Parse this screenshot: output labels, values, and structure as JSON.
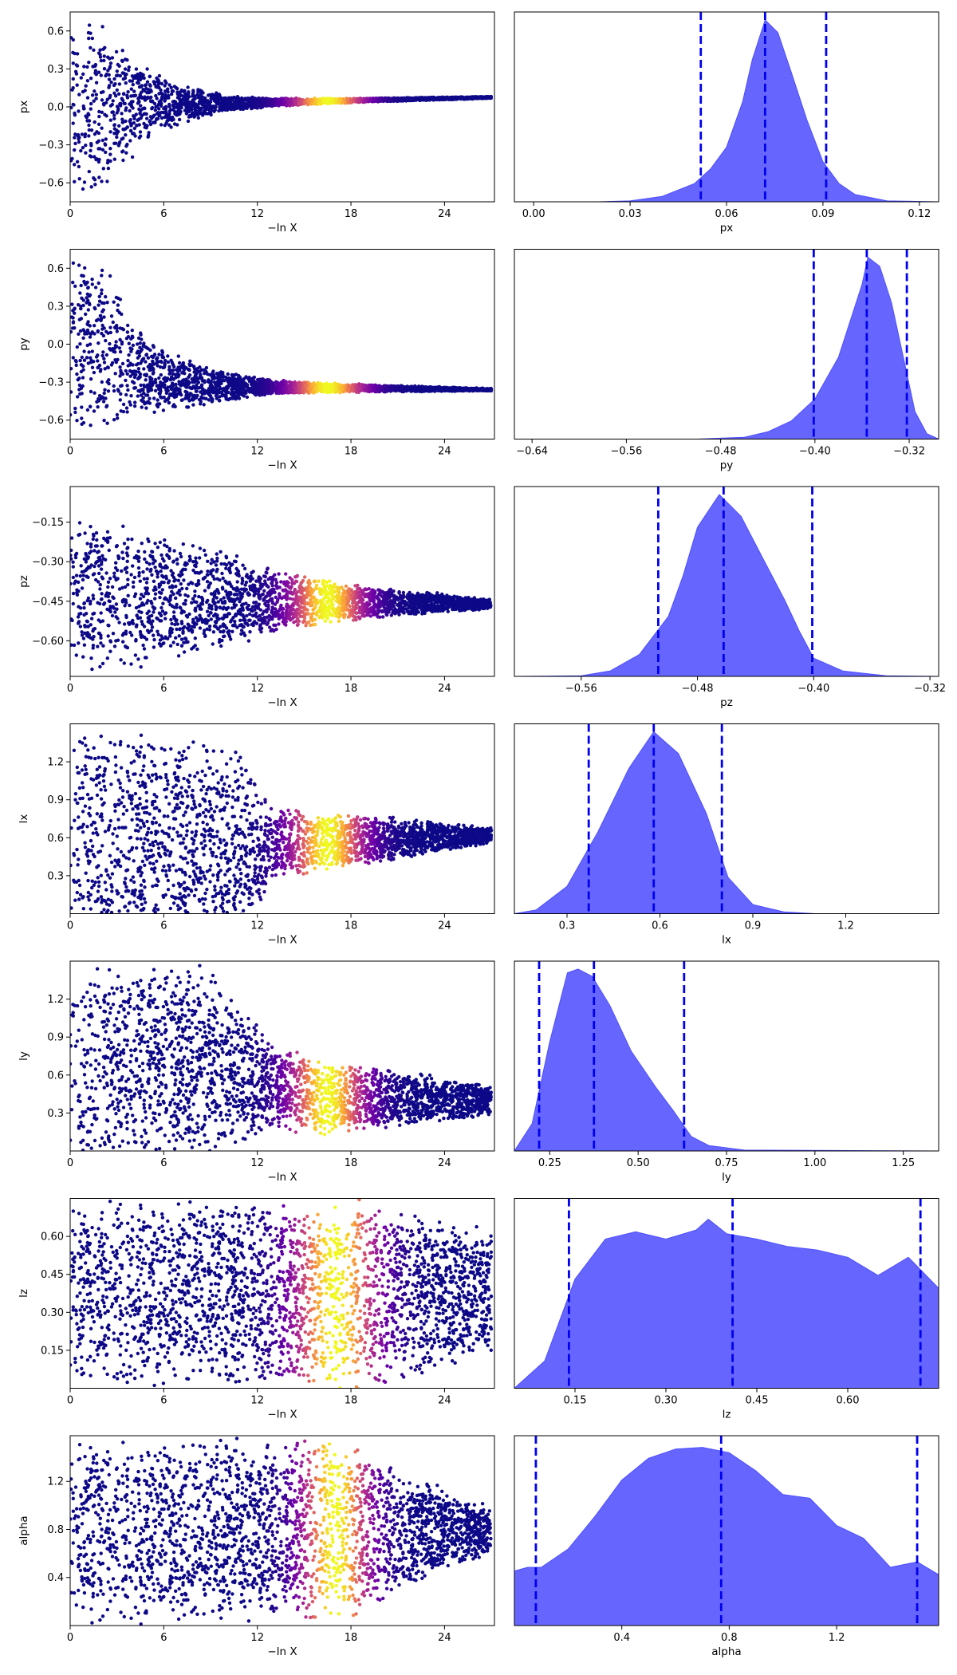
{
  "colors": {
    "kde_fill": "#6666ff",
    "kde_line": "#4d4dff",
    "quantile_line": "#0000ee",
    "axes": "#000000",
    "colormap": "plasma"
  },
  "trace_xlabel": "−ln X",
  "chart_data": [
    {
      "param": "px",
      "trace_ylabel": "px",
      "ylim": [
        -0.75,
        0.75
      ],
      "yticks": [
        -0.6,
        -0.3,
        0.0,
        0.3,
        0.6
      ],
      "ytick_labels": [
        "−0.6",
        "−0.3",
        "0.0",
        "0.3",
        "0.6"
      ],
      "xticks": [
        0,
        6,
        12,
        18,
        24
      ],
      "xlim": [
        0,
        27.2
      ],
      "trace_center": [
        [
          0,
          0.0
        ],
        [
          27,
          0.075
        ]
      ],
      "trace_halfwidth": [
        [
          0,
          0.75
        ],
        [
          2,
          0.75
        ],
        [
          3,
          0.55
        ],
        [
          5,
          0.3
        ],
        [
          7,
          0.16
        ],
        [
          10,
          0.07
        ],
        [
          13,
          0.035
        ],
        [
          18,
          0.018
        ],
        [
          27,
          0.008
        ]
      ],
      "trace_peak": 16.5,
      "trace_band": 2.5,
      "posterior": {
        "type": "area",
        "xlim": [
          -0.006,
          0.126
        ],
        "xticks": [
          0.0,
          0.03,
          0.06,
          0.09,
          0.12
        ],
        "xtick_labels": [
          "0.00",
          "0.03",
          "0.06",
          "0.09",
          "0.12"
        ],
        "xlabel": "px",
        "curve": [
          [
            -0.006,
            0
          ],
          [
            0.02,
            0
          ],
          [
            0.03,
            0.005
          ],
          [
            0.04,
            0.03
          ],
          [
            0.05,
            0.1
          ],
          [
            0.055,
            0.18
          ],
          [
            0.06,
            0.3
          ],
          [
            0.065,
            0.55
          ],
          [
            0.068,
            0.78
          ],
          [
            0.072,
            1.0
          ],
          [
            0.076,
            0.93
          ],
          [
            0.08,
            0.72
          ],
          [
            0.085,
            0.45
          ],
          [
            0.09,
            0.22
          ],
          [
            0.095,
            0.1
          ],
          [
            0.1,
            0.04
          ],
          [
            0.11,
            0.005
          ],
          [
            0.126,
            0
          ]
        ],
        "quantiles": [
          0.052,
          0.072,
          0.091
        ]
      }
    },
    {
      "param": "py",
      "trace_ylabel": "py",
      "ylim": [
        -0.75,
        0.75
      ],
      "yticks": [
        -0.6,
        -0.3,
        0.0,
        0.3,
        0.6
      ],
      "ytick_labels": [
        "−0.6",
        "−0.3",
        "0.0",
        "0.3",
        "0.6"
      ],
      "xticks": [
        0,
        6,
        12,
        18,
        24
      ],
      "xlim": [
        0,
        27.2
      ],
      "trace_center": [
        [
          0,
          0.0
        ],
        [
          1.5,
          0.0
        ],
        [
          3,
          -0.1
        ],
        [
          5,
          -0.25
        ],
        [
          8,
          -0.33
        ],
        [
          27,
          -0.36
        ]
      ],
      "trace_halfwidth": [
        [
          0,
          0.75
        ],
        [
          2,
          0.75
        ],
        [
          4,
          0.35
        ],
        [
          7,
          0.22
        ],
        [
          10,
          0.12
        ],
        [
          13,
          0.06
        ],
        [
          18,
          0.035
        ],
        [
          27,
          0.01
        ]
      ],
      "trace_peak": 16.5,
      "trace_band": 2.5,
      "posterior": {
        "type": "area",
        "xlim": [
          -0.655,
          -0.295
        ],
        "xticks": [
          -0.64,
          -0.56,
          -0.48,
          -0.4,
          -0.32
        ],
        "xtick_labels": [
          "−0.64",
          "−0.56",
          "−0.48",
          "−0.40",
          "−0.32"
        ],
        "xlabel": "py",
        "curve": [
          [
            -0.655,
            0
          ],
          [
            -0.5,
            0
          ],
          [
            -0.46,
            0.01
          ],
          [
            -0.44,
            0.04
          ],
          [
            -0.42,
            0.1
          ],
          [
            -0.4,
            0.22
          ],
          [
            -0.38,
            0.45
          ],
          [
            -0.36,
            0.85
          ],
          [
            -0.355,
            1.0
          ],
          [
            -0.345,
            0.95
          ],
          [
            -0.335,
            0.75
          ],
          [
            -0.325,
            0.45
          ],
          [
            -0.315,
            0.15
          ],
          [
            -0.305,
            0.03
          ],
          [
            -0.295,
            0
          ]
        ],
        "quantiles": [
          -0.401,
          -0.356,
          -0.322
        ]
      }
    },
    {
      "param": "pz",
      "trace_ylabel": "pz",
      "ylim": [
        -0.735,
        -0.015
      ],
      "yticks": [
        -0.6,
        -0.45,
        -0.3,
        -0.15
      ],
      "ytick_labels": [
        "−0.60",
        "−0.45",
        "−0.30",
        "−0.15"
      ],
      "xticks": [
        0,
        6,
        12,
        18,
        24
      ],
      "xlim": [
        0,
        27.2
      ],
      "trace_center": [
        [
          0,
          -0.42
        ],
        [
          12,
          -0.45
        ],
        [
          27,
          -0.46
        ]
      ],
      "trace_halfwidth": [
        [
          0,
          0.3
        ],
        [
          4,
          0.28
        ],
        [
          8,
          0.22
        ],
        [
          12,
          0.15
        ],
        [
          15,
          0.1
        ],
        [
          20,
          0.06
        ],
        [
          27,
          0.02
        ]
      ],
      "trace_peak": 16.5,
      "trace_band": 2.5,
      "posterior": {
        "type": "area",
        "xlim": [
          -0.606,
          -0.314
        ],
        "xticks": [
          -0.56,
          -0.48,
          -0.4,
          -0.32
        ],
        "xtick_labels": [
          "−0.56",
          "−0.48",
          "−0.40",
          "−0.32"
        ],
        "xlabel": "pz",
        "curve": [
          [
            -0.606,
            0
          ],
          [
            -0.56,
            0.003
          ],
          [
            -0.54,
            0.03
          ],
          [
            -0.52,
            0.12
          ],
          [
            -0.5,
            0.33
          ],
          [
            -0.49,
            0.55
          ],
          [
            -0.48,
            0.82
          ],
          [
            -0.465,
            1.0
          ],
          [
            -0.45,
            0.88
          ],
          [
            -0.435,
            0.65
          ],
          [
            -0.42,
            0.42
          ],
          [
            -0.41,
            0.25
          ],
          [
            -0.4,
            0.1
          ],
          [
            -0.38,
            0.03
          ],
          [
            -0.35,
            0.003
          ],
          [
            -0.314,
            0
          ]
        ],
        "quantiles": [
          -0.507,
          -0.462,
          -0.401
        ]
      }
    },
    {
      "param": "lx",
      "trace_ylabel": "lx",
      "ylim": [
        0.0,
        1.5
      ],
      "yticks": [
        0.3,
        0.6,
        0.9,
        1.2
      ],
      "ytick_labels": [
        "0.3",
        "0.6",
        "0.9",
        "1.2"
      ],
      "xticks": [
        0,
        6,
        12,
        18,
        24
      ],
      "xlim": [
        0,
        27.2
      ],
      "trace_center": [
        [
          0,
          0.6
        ],
        [
          12,
          0.55
        ],
        [
          27,
          0.62
        ]
      ],
      "trace_halfwidth": [
        [
          0,
          0.9
        ],
        [
          6,
          0.85
        ],
        [
          11,
          0.78
        ],
        [
          13,
          0.3
        ],
        [
          18,
          0.22
        ],
        [
          23,
          0.14
        ],
        [
          27,
          0.06
        ]
      ],
      "trace_peak": 16.5,
      "trace_band": 2.5,
      "posterior": {
        "type": "area",
        "xlim": [
          0.13,
          1.5
        ],
        "xticks": [
          0.3,
          0.6,
          0.9,
          1.2
        ],
        "xtick_labels": [
          "0.3",
          "0.6",
          "0.9",
          "1.2"
        ],
        "xlabel": "lx",
        "curve": [
          [
            0.13,
            0
          ],
          [
            0.2,
            0.02
          ],
          [
            0.3,
            0.15
          ],
          [
            0.4,
            0.45
          ],
          [
            0.5,
            0.8
          ],
          [
            0.58,
            1.0
          ],
          [
            0.66,
            0.88
          ],
          [
            0.75,
            0.55
          ],
          [
            0.82,
            0.2
          ],
          [
            0.9,
            0.05
          ],
          [
            1.0,
            0.01
          ],
          [
            1.1,
            0
          ],
          [
            1.5,
            0
          ]
        ],
        "quantiles": [
          0.37,
          0.58,
          0.8
        ]
      }
    },
    {
      "param": "ly",
      "trace_ylabel": "ly",
      "ylim": [
        0.0,
        1.5
      ],
      "yticks": [
        0.3,
        0.6,
        0.9,
        1.2
      ],
      "ytick_labels": [
        "0.3",
        "0.6",
        "0.9",
        "1.2"
      ],
      "xticks": [
        0,
        6,
        12,
        18,
        24
      ],
      "xlim": [
        0,
        27.2
      ],
      "trace_center": [
        [
          0,
          0.7
        ],
        [
          8,
          0.7
        ],
        [
          12,
          0.55
        ],
        [
          16,
          0.42
        ],
        [
          27,
          0.4
        ]
      ],
      "trace_halfwidth": [
        [
          0,
          0.8
        ],
        [
          9,
          0.8
        ],
        [
          13,
          0.35
        ],
        [
          20,
          0.25
        ],
        [
          27,
          0.12
        ]
      ],
      "trace_peak": 16.5,
      "trace_band": 2.5,
      "posterior": {
        "type": "area",
        "xlim": [
          0.15,
          1.35
        ],
        "xticks": [
          0.25,
          0.5,
          0.75,
          1.0,
          1.25
        ],
        "xtick_labels": [
          "0.25",
          "0.50",
          "0.75",
          "1.00",
          "1.25"
        ],
        "xlabel": "ly",
        "curve": [
          [
            0.15,
            0
          ],
          [
            0.2,
            0.15
          ],
          [
            0.25,
            0.6
          ],
          [
            0.3,
            0.98
          ],
          [
            0.33,
            1.0
          ],
          [
            0.37,
            0.96
          ],
          [
            0.42,
            0.8
          ],
          [
            0.48,
            0.55
          ],
          [
            0.55,
            0.35
          ],
          [
            0.6,
            0.22
          ],
          [
            0.65,
            0.08
          ],
          [
            0.7,
            0.03
          ],
          [
            0.8,
            0.005
          ],
          [
            1.35,
            0
          ]
        ],
        "quantiles": [
          0.22,
          0.375,
          0.63
        ]
      }
    },
    {
      "param": "lz",
      "trace_ylabel": "lz",
      "ylim": [
        0.0,
        0.75
      ],
      "yticks": [
        0.15,
        0.3,
        0.45,
        0.6
      ],
      "ytick_labels": [
        "0.15",
        "0.30",
        "0.45",
        "0.60"
      ],
      "xticks": [
        0,
        6,
        12,
        18,
        24
      ],
      "xlim": [
        0,
        27.2
      ],
      "trace_center": [
        [
          0,
          0.375
        ],
        [
          27,
          0.375
        ]
      ],
      "trace_halfwidth": [
        [
          0,
          0.38
        ],
        [
          20,
          0.38
        ],
        [
          23,
          0.32
        ],
        [
          27,
          0.25
        ]
      ],
      "trace_peak": 17.0,
      "trace_band": 2.8,
      "posterior": {
        "type": "area",
        "xlim": [
          0.05,
          0.75
        ],
        "xticks": [
          0.15,
          0.3,
          0.45,
          0.6
        ],
        "xtick_labels": [
          "0.15",
          "0.30",
          "0.45",
          "0.60"
        ],
        "xlabel": "lz",
        "curve": [
          [
            0.05,
            0
          ],
          [
            0.1,
            0.15
          ],
          [
            0.15,
            0.6
          ],
          [
            0.2,
            0.82
          ],
          [
            0.25,
            0.86
          ],
          [
            0.3,
            0.82
          ],
          [
            0.35,
            0.87
          ],
          [
            0.37,
            0.93
          ],
          [
            0.4,
            0.85
          ],
          [
            0.45,
            0.82
          ],
          [
            0.5,
            0.78
          ],
          [
            0.55,
            0.76
          ],
          [
            0.6,
            0.72
          ],
          [
            0.65,
            0.62
          ],
          [
            0.7,
            0.72
          ],
          [
            0.75,
            0.55
          ]
        ],
        "quantiles": [
          0.14,
          0.41,
          0.72
        ]
      }
    },
    {
      "param": "alpha",
      "trace_ylabel": "alpha",
      "ylim": [
        0.0,
        1.58
      ],
      "yticks": [
        0.4,
        0.8,
        1.2
      ],
      "ytick_labels": [
        "0.4",
        "0.8",
        "1.2"
      ],
      "xticks": [
        0,
        6,
        12,
        18,
        24
      ],
      "xlim": [
        0,
        27.2
      ],
      "trace_center": [
        [
          0,
          0.79
        ],
        [
          27,
          0.79
        ]
      ],
      "trace_halfwidth": [
        [
          0,
          0.79
        ],
        [
          18,
          0.79
        ],
        [
          21,
          0.55
        ],
        [
          24,
          0.35
        ],
        [
          27,
          0.2
        ]
      ],
      "trace_peak": 17.0,
      "trace_band": 2.3,
      "posterior": {
        "type": "area",
        "xlim": [
          0.0,
          1.58
        ],
        "xticks": [
          0.4,
          0.8,
          1.2
        ],
        "xtick_labels": [
          "0.4",
          "0.8",
          "1.2"
        ],
        "xlabel": "alpha",
        "curve": [
          [
            0.0,
            0.3
          ],
          [
            0.05,
            0.32
          ],
          [
            0.1,
            0.32
          ],
          [
            0.2,
            0.42
          ],
          [
            0.3,
            0.6
          ],
          [
            0.4,
            0.8
          ],
          [
            0.5,
            0.92
          ],
          [
            0.6,
            0.97
          ],
          [
            0.7,
            0.98
          ],
          [
            0.8,
            0.95
          ],
          [
            0.9,
            0.85
          ],
          [
            1.0,
            0.72
          ],
          [
            1.1,
            0.7
          ],
          [
            1.2,
            0.55
          ],
          [
            1.3,
            0.48
          ],
          [
            1.4,
            0.32
          ],
          [
            1.5,
            0.35
          ],
          [
            1.58,
            0.28
          ]
        ],
        "quantiles": [
          0.08,
          0.77,
          1.5
        ]
      }
    }
  ]
}
